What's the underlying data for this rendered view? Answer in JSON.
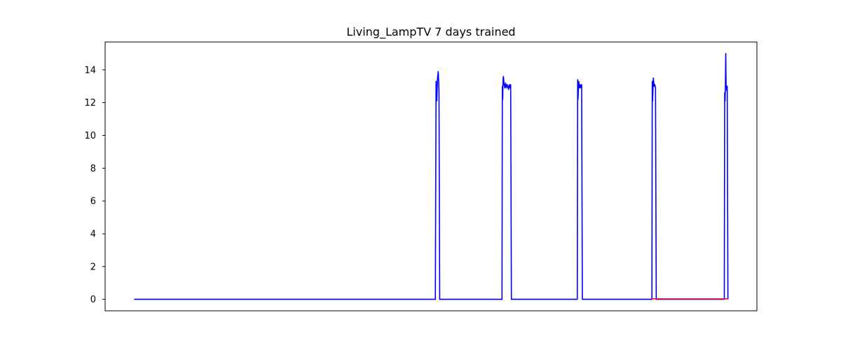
{
  "chart_data": {
    "type": "line",
    "title": "Living_LampTV 7 days trained",
    "xlabel": "",
    "ylabel": "",
    "xlim": [
      -0.4,
      8.6
    ],
    "ylim": [
      -0.7,
      15.7
    ],
    "x_ticks_shown": false,
    "y_ticks": [
      0,
      2,
      4,
      6,
      8,
      10,
      12,
      14
    ],
    "grid": false,
    "legend": "none",
    "series": [
      {
        "color": "#0000ff",
        "points": [
          [
            0.0,
            0.0
          ],
          [
            4.16,
            0.0
          ],
          [
            4.17,
            13.3
          ],
          [
            4.18,
            12.1
          ],
          [
            4.19,
            13.5
          ],
          [
            4.2,
            13.9
          ],
          [
            4.21,
            12.8
          ],
          [
            4.22,
            0.0
          ],
          [
            5.08,
            0.0
          ],
          [
            5.085,
            13.0
          ],
          [
            5.09,
            12.2
          ],
          [
            5.095,
            13.4
          ],
          [
            5.1,
            13.6
          ],
          [
            5.11,
            13.1
          ],
          [
            5.12,
            12.9
          ],
          [
            5.13,
            13.2
          ],
          [
            5.14,
            12.9
          ],
          [
            5.15,
            13.1
          ],
          [
            5.16,
            13.0
          ],
          [
            5.17,
            12.8
          ],
          [
            5.18,
            13.1
          ],
          [
            5.19,
            12.9
          ],
          [
            5.2,
            13.1
          ],
          [
            5.21,
            0.0
          ],
          [
            6.12,
            0.0
          ],
          [
            6.125,
            13.4
          ],
          [
            6.13,
            12.2
          ],
          [
            6.14,
            13.3
          ],
          [
            6.15,
            12.9
          ],
          [
            6.16,
            13.1
          ],
          [
            6.17,
            12.9
          ],
          [
            6.18,
            13.1
          ],
          [
            6.19,
            0.0
          ],
          [
            7.15,
            0.0
          ],
          [
            7.155,
            13.3
          ],
          [
            7.16,
            12.1
          ],
          [
            7.17,
            13.5
          ],
          [
            7.18,
            13.0
          ],
          [
            7.19,
            13.1
          ],
          [
            7.2,
            12.9
          ],
          [
            7.21,
            0.0
          ],
          [
            8.15,
            0.0
          ],
          [
            8.155,
            12.6
          ],
          [
            8.16,
            12.1
          ],
          [
            8.165,
            13.1
          ],
          [
            8.17,
            15.0
          ],
          [
            8.175,
            12.9
          ],
          [
            8.18,
            13.0
          ],
          [
            8.185,
            12.7
          ],
          [
            8.19,
            13.0
          ],
          [
            8.2,
            0.0
          ]
        ]
      },
      {
        "color": "#dc143c",
        "points": [
          [
            7.15,
            0.03
          ],
          [
            8.2,
            0.03
          ]
        ]
      }
    ]
  }
}
